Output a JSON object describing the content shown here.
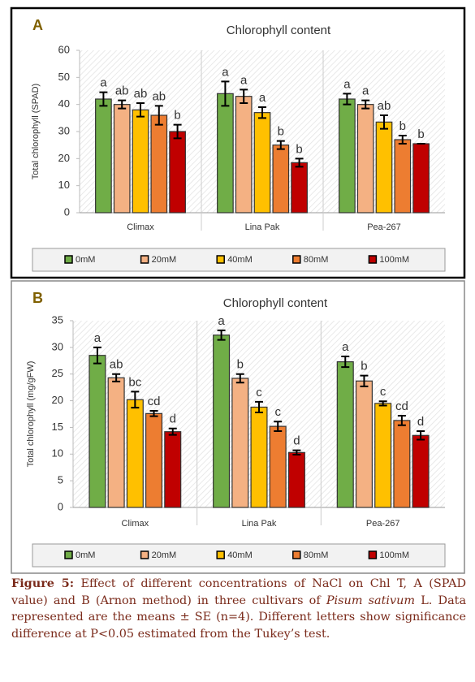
{
  "chart_data": [
    {
      "type": "bar",
      "panel_label": "A",
      "title": "Chlorophyll content",
      "y_label": "Total chlorophyll (SPAD)",
      "categories": [
        "Climax",
        "Lina Pak",
        "Pea-267"
      ],
      "ylim": [
        0,
        60
      ],
      "yticks": [
        0,
        10,
        20,
        30,
        40,
        50,
        60
      ],
      "series": [
        {
          "name": "0mM",
          "color": "#70ad47",
          "values": [
            42,
            44,
            42
          ],
          "errors": [
            2.5,
            4.5,
            2
          ],
          "letters": [
            "a",
            "a",
            "a"
          ]
        },
        {
          "name": "20mM",
          "color": "#f4b183",
          "values": [
            40,
            43,
            40
          ],
          "errors": [
            1.5,
            2.5,
            1.5
          ],
          "letters": [
            "ab",
            "a",
            "a"
          ]
        },
        {
          "name": "40mM",
          "color": "#ffc000",
          "values": [
            38,
            37,
            33.5
          ],
          "errors": [
            2.5,
            2,
            2.5
          ],
          "letters": [
            "ab",
            "a",
            "ab"
          ]
        },
        {
          "name": "80mM",
          "color": "#ed7d31",
          "values": [
            36,
            25,
            27
          ],
          "errors": [
            3.5,
            1.5,
            1.5
          ],
          "letters": [
            "ab",
            "b",
            "b"
          ]
        },
        {
          "name": "100mM",
          "color": "#c00000",
          "values": [
            30,
            18.5,
            25.5
          ],
          "errors": [
            2.5,
            1.5,
            0
          ],
          "letters": [
            "b",
            "b",
            "b"
          ]
        }
      ]
    },
    {
      "type": "bar",
      "panel_label": "B",
      "title": "Chlorophyll content",
      "y_label": "Total chlorophyll (mg/gFW)",
      "categories": [
        "Climax",
        "Lina Pak",
        "Pea-267"
      ],
      "ylim": [
        0,
        35
      ],
      "yticks": [
        0,
        5,
        10,
        15,
        20,
        25,
        30,
        35
      ],
      "series": [
        {
          "name": "0mM",
          "color": "#70ad47",
          "values": [
            28.5,
            32.3,
            27.3
          ],
          "errors": [
            1.5,
            0.9,
            1
          ],
          "letters": [
            "a",
            "a",
            "a"
          ]
        },
        {
          "name": "20mM",
          "color": "#f4b183",
          "values": [
            24.3,
            24.2,
            23.7
          ],
          "errors": [
            0.7,
            0.8,
            1
          ],
          "letters": [
            "ab",
            "b",
            "b"
          ]
        },
        {
          "name": "40mM",
          "color": "#ffc000",
          "values": [
            20.2,
            18.8,
            19.5
          ],
          "errors": [
            1.5,
            1,
            0.4
          ],
          "letters": [
            "bc",
            "c",
            "c"
          ]
        },
        {
          "name": "80mM",
          "color": "#ed7d31",
          "values": [
            17.6,
            15.2,
            16.3
          ],
          "errors": [
            0.5,
            0.9,
            0.9
          ],
          "letters": [
            "cd",
            "c",
            "cd"
          ]
        },
        {
          "name": "100mM",
          "color": "#c00000",
          "values": [
            14.2,
            10.3,
            13.5
          ],
          "errors": [
            0.6,
            0.4,
            0.8
          ],
          "letters": [
            "d",
            "d",
            "d"
          ]
        }
      ]
    }
  ],
  "caption": {
    "label": "Figure 5:",
    "text_before": "Effect of different concentrations of NaCl on Chl T, A (SPAD value) and B (Arnon method) in three cultivars of",
    "species": "Pisum sativum",
    "text_after": "L. Data represented are the means ± SE (n=4). Different letters show significance difference at P<0.05 estimated from the Tukey’s test."
  }
}
